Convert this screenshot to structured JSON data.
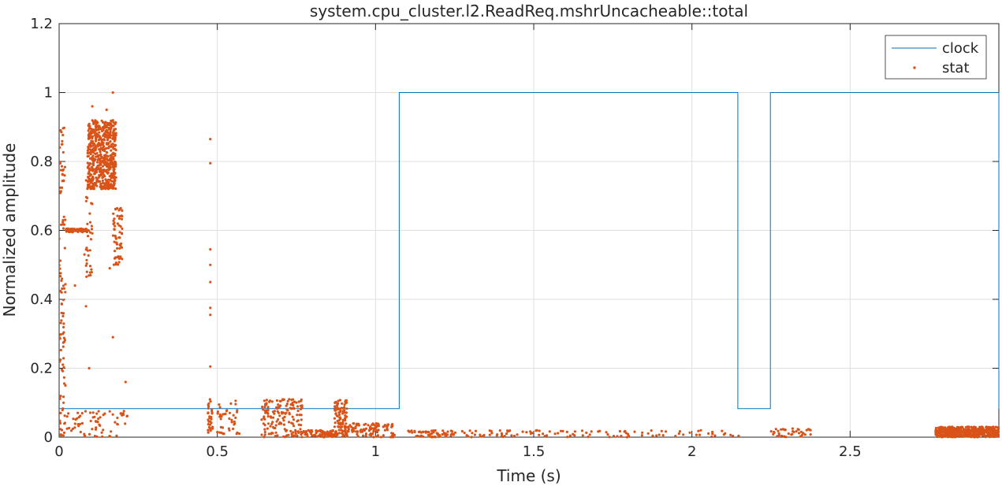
{
  "chart_data": {
    "type": "line",
    "title": "system.cpu_cluster.l2.ReadReq.mshrUncacheable::total",
    "xlabel": "Time (s)",
    "ylabel": "Normalized amplitude",
    "xlim": [
      0,
      2.97
    ],
    "ylim": [
      0,
      1.2
    ],
    "x_ticks": [
      0,
      0.5,
      1,
      1.5,
      2,
      2.5
    ],
    "x_tick_labels": [
      "0",
      "0.5",
      "1",
      "1.5",
      "2",
      "2.5"
    ],
    "y_ticks": [
      0,
      0.2,
      0.4,
      0.6,
      0.8,
      1,
      1.2
    ],
    "y_tick_labels": [
      "0",
      "0.2",
      "0.4",
      "0.6",
      "0.8",
      "1",
      "1.2"
    ],
    "grid": true,
    "legend_position": "top-right",
    "series": [
      {
        "name": "clock",
        "style": "step-line",
        "color": "#0072BD",
        "points": [
          [
            0,
            0.083
          ],
          [
            1.075,
            0.083
          ],
          [
            1.075,
            1.0
          ],
          [
            2.145,
            1.0
          ],
          [
            2.145,
            0.083
          ],
          [
            2.248,
            0.083
          ],
          [
            2.248,
            1.0
          ],
          [
            2.97,
            1.0
          ],
          [
            2.97,
            0.083
          ]
        ]
      },
      {
        "name": "stat",
        "style": "markers",
        "color": "#D95319",
        "clusters": [
          {
            "x": [
              0.0,
              0.02
            ],
            "y": [
              0.0,
              0.9
            ],
            "n": 90
          },
          {
            "x": [
              0.02,
              0.09
            ],
            "y": [
              0.595,
              0.605
            ],
            "n": 70
          },
          {
            "x": [
              0.085,
              0.105
            ],
            "y": [
              0.45,
              0.8
            ],
            "n": 40
          },
          {
            "x": [
              0.09,
              0.18
            ],
            "y": [
              0.72,
              0.92
            ],
            "n": 600
          },
          {
            "x": [
              0.17,
              0.2
            ],
            "y": [
              0.5,
              0.67
            ],
            "n": 60
          },
          {
            "x": [
              0.0,
              0.22
            ],
            "y": [
              0.0,
              0.08
            ],
            "n": 80
          },
          {
            "x": [
              0.47,
              0.485
            ],
            "y": [
              0.0,
              0.11
            ],
            "n": 30
          },
          {
            "x": [
              0.5,
              0.57
            ],
            "y": [
              0.0,
              0.11
            ],
            "n": 40
          },
          {
            "x": [
              0.64,
              0.77
            ],
            "y": [
              0.0,
              0.11
            ],
            "n": 160
          },
          {
            "x": [
              0.77,
              0.88
            ],
            "y": [
              0.0,
              0.02
            ],
            "n": 90
          },
          {
            "x": [
              0.87,
              0.91
            ],
            "y": [
              0.0,
              0.11
            ],
            "n": 90
          },
          {
            "x": [
              0.9,
              1.06
            ],
            "y": [
              0.0,
              0.04
            ],
            "n": 110
          },
          {
            "x": [
              1.1,
              1.25
            ],
            "y": [
              0.0,
              0.02
            ],
            "n": 60
          },
          {
            "x": [
              1.25,
              2.15
            ],
            "y": [
              0.0,
              0.02
            ],
            "n": 110
          },
          {
            "x": [
              2.25,
              2.38
            ],
            "y": [
              0.0,
              0.025
            ],
            "n": 40
          },
          {
            "x": [
              2.77,
              2.97
            ],
            "y": [
              0.0,
              0.03
            ],
            "n": 500
          }
        ],
        "isolated": [
          [
            0.005,
            0.89
          ],
          [
            0.01,
            0.85
          ],
          [
            0.008,
            0.42
          ],
          [
            0.012,
            0.3
          ],
          [
            0.02,
            0.15
          ],
          [
            0.05,
            0.44
          ],
          [
            0.08,
            0.53
          ],
          [
            0.095,
            0.2
          ],
          [
            0.085,
            0.38
          ],
          [
            0.15,
            0.95
          ],
          [
            0.17,
            1.0
          ],
          [
            0.17,
            0.29
          ],
          [
            0.21,
            0.16
          ],
          [
            0.16,
            0.49
          ],
          [
            0.105,
            0.96
          ],
          [
            0.478,
            0.865
          ],
          [
            0.478,
            0.795
          ],
          [
            0.478,
            0.545
          ],
          [
            0.478,
            0.5
          ],
          [
            0.478,
            0.45
          ],
          [
            0.478,
            0.375
          ],
          [
            0.478,
            0.355
          ],
          [
            0.478,
            0.205
          ]
        ]
      }
    ]
  }
}
